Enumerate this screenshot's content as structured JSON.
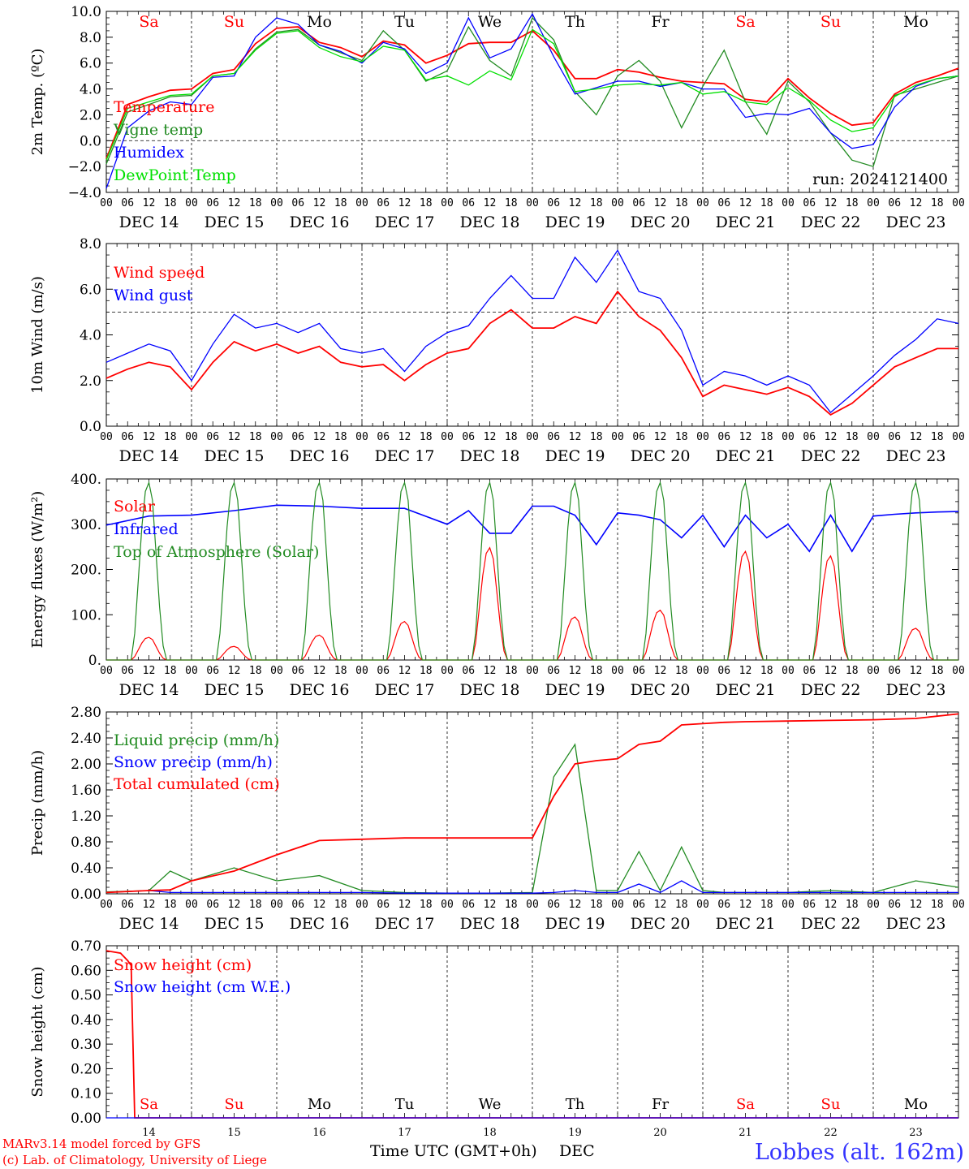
{
  "run_label": "run: 2024121400",
  "footer": {
    "model": "MARv3.14 model forced by GFS",
    "credit": "(c) Lab. of Climatology, University of Liege",
    "station": "Lobbes (alt. 162m)",
    "xlabel": "Time UTC (GMT+0h)",
    "month": "DEC"
  },
  "colors": {
    "red": "#ff0000",
    "green": "#228b22",
    "blue": "#0000ff",
    "lime": "#00e000",
    "weekend": "#ff0000",
    "weekday": "#000000"
  },
  "days": [
    {
      "wd": "Sa",
      "date": "14",
      "weekend": true
    },
    {
      "wd": "Su",
      "date": "15",
      "weekend": true
    },
    {
      "wd": "Mo",
      "date": "16",
      "weekend": false
    },
    {
      "wd": "Tu",
      "date": "17",
      "weekend": false
    },
    {
      "wd": "We",
      "date": "18",
      "weekend": false
    },
    {
      "wd": "Th",
      "date": "19",
      "weekend": false
    },
    {
      "wd": "Fr",
      "date": "20",
      "weekend": false
    },
    {
      "wd": "Sa",
      "date": "21",
      "weekend": true
    },
    {
      "wd": "Su",
      "date": "22",
      "weekend": true
    },
    {
      "wd": "Mo",
      "date": "23",
      "weekend": false
    }
  ],
  "hour_labels": [
    "00",
    "06",
    "12",
    "18"
  ],
  "date_labels": [
    "DEC 14",
    "DEC 15",
    "DEC 16",
    "DEC 17",
    "DEC 18",
    "DEC 19",
    "DEC 20",
    "DEC 21",
    "DEC 22",
    "DEC 23"
  ],
  "chart_data": [
    {
      "id": "temp",
      "type": "line",
      "ylabel": "2m Temp. (ºC)",
      "ylim": [
        -4,
        10
      ],
      "yticks": [
        "−4.0",
        "−2.0",
        "0.0",
        "2.0",
        "4.0",
        "6.0",
        "8.0",
        "10.0"
      ],
      "refline": 0,
      "show_weekdays": true,
      "x_hours": [
        0,
        6,
        12,
        18,
        24,
        30,
        36,
        42,
        48,
        54,
        60,
        66,
        72,
        78,
        84,
        90,
        96,
        102,
        108,
        114,
        120,
        126,
        132,
        138,
        144,
        150,
        156,
        162,
        168,
        174,
        180,
        186,
        192,
        198,
        204,
        210,
        216,
        222,
        228,
        234,
        240
      ],
      "series": [
        {
          "name": "Temperature",
          "color": "red",
          "values": [
            -1.4,
            2.8,
            3.4,
            3.9,
            4.0,
            5.2,
            5.5,
            7.5,
            8.7,
            8.8,
            7.6,
            7.2,
            6.5,
            7.7,
            7.4,
            6.0,
            6.6,
            7.5,
            7.6,
            7.6,
            8.5,
            7.0,
            4.8,
            4.8,
            5.5,
            5.3,
            4.9,
            4.6,
            4.5,
            4.4,
            3.2,
            3.0,
            4.8,
            3.3,
            2.1,
            1.2,
            1.4,
            3.6,
            4.5,
            5.0,
            5.6
          ]
        },
        {
          "name": "Vigne temp",
          "color": "green",
          "values": [
            -1.8,
            2.2,
            2.8,
            3.4,
            3.5,
            5.0,
            5.2,
            7.1,
            8.4,
            8.6,
            7.4,
            6.8,
            6.2,
            8.5,
            7.0,
            4.6,
            5.4,
            8.8,
            6.2,
            5.0,
            9.5,
            7.8,
            3.8,
            2.0,
            5.0,
            6.2,
            4.6,
            1.0,
            4.2,
            7.0,
            3.0,
            0.5,
            4.6,
            3.0,
            0.6,
            -1.5,
            -2.0,
            3.5,
            4.0,
            4.5,
            5.0
          ]
        },
        {
          "name": "Humidex",
          "color": "blue",
          "values": [
            -3.7,
            1.0,
            2.3,
            3.0,
            2.8,
            4.9,
            5.0,
            8.0,
            9.5,
            9.0,
            7.4,
            6.9,
            6.0,
            7.6,
            7.1,
            5.2,
            6.0,
            9.5,
            6.4,
            7.1,
            9.8,
            6.5,
            3.6,
            4.1,
            4.6,
            4.6,
            4.2,
            4.5,
            4.0,
            4.0,
            1.8,
            2.1,
            2.0,
            2.5,
            0.6,
            -0.6,
            -0.3,
            2.6,
            4.2,
            4.8,
            5.0
          ]
        },
        {
          "name": "DewPoint Temp",
          "color": "lime",
          "values": [
            -1.5,
            2.5,
            3.0,
            3.5,
            3.6,
            5.0,
            5.2,
            7.0,
            8.3,
            8.5,
            7.2,
            6.5,
            6.1,
            7.3,
            7.0,
            4.7,
            5.0,
            4.3,
            5.4,
            4.7,
            8.6,
            7.5,
            3.8,
            4.0,
            4.3,
            4.4,
            4.3,
            4.5,
            3.6,
            3.8,
            3.0,
            2.8,
            4.1,
            3.1,
            1.6,
            0.7,
            1.0,
            3.4,
            4.3,
            4.8,
            5.0
          ]
        }
      ]
    },
    {
      "id": "wind",
      "type": "line",
      "ylabel": "10m Wind (m/s)",
      "ylim": [
        0,
        8
      ],
      "yticks": [
        "0.0",
        "2.0",
        "4.0",
        "6.0",
        "8.0"
      ],
      "refline": 5,
      "show_weekdays": false,
      "x_hours": [
        0,
        6,
        12,
        18,
        24,
        30,
        36,
        42,
        48,
        54,
        60,
        66,
        72,
        78,
        84,
        90,
        96,
        102,
        108,
        114,
        120,
        126,
        132,
        138,
        144,
        150,
        156,
        162,
        168,
        174,
        180,
        186,
        192,
        198,
        204,
        210,
        216,
        222,
        228,
        234,
        240
      ],
      "series": [
        {
          "name": "Wind speed",
          "color": "red",
          "values": [
            2.1,
            2.5,
            2.8,
            2.6,
            1.6,
            2.8,
            3.7,
            3.3,
            3.6,
            3.2,
            3.5,
            2.8,
            2.6,
            2.7,
            2.0,
            2.7,
            3.2,
            3.4,
            4.5,
            5.1,
            4.3,
            4.3,
            4.8,
            4.5,
            5.9,
            4.8,
            4.2,
            3.0,
            1.3,
            1.8,
            1.6,
            1.4,
            1.7,
            1.3,
            0.5,
            1.0,
            1.8,
            2.6,
            3.0,
            3.4,
            3.4
          ]
        },
        {
          "name": "Wind gust",
          "color": "blue",
          "values": [
            2.8,
            3.2,
            3.6,
            3.3,
            2.0,
            3.6,
            4.9,
            4.3,
            4.5,
            4.1,
            4.5,
            3.4,
            3.2,
            3.4,
            2.4,
            3.5,
            4.1,
            4.4,
            5.6,
            6.6,
            5.6,
            5.6,
            7.4,
            6.3,
            7.7,
            5.9,
            5.6,
            4.2,
            1.8,
            2.4,
            2.2,
            1.8,
            2.2,
            1.8,
            0.6,
            1.4,
            2.2,
            3.1,
            3.8,
            4.7,
            4.5
          ]
        }
      ]
    },
    {
      "id": "energy",
      "type": "line",
      "ylabel": "Energy fluxes (W/m²)",
      "ylim": [
        0,
        400
      ],
      "yticks": [
        "0.",
        "100.",
        "200.",
        "300.",
        "400."
      ],
      "show_weekdays": false,
      "series": [
        {
          "name": "Solar",
          "color": "red",
          "kind": "diurnal",
          "peaks": [
            50,
            30,
            55,
            85,
            248,
            95,
            110,
            240,
            230,
            70
          ]
        },
        {
          "name": "Infrared",
          "color": "blue",
          "x_hours": [
            0,
            12,
            24,
            36,
            48,
            60,
            72,
            84,
            96,
            102,
            108,
            114,
            120,
            126,
            132,
            138,
            144,
            150,
            156,
            162,
            168,
            174,
            180,
            186,
            192,
            198,
            204,
            210,
            216,
            222,
            228,
            234,
            240
          ],
          "values": [
            298,
            318,
            320,
            330,
            342,
            340,
            335,
            335,
            300,
            330,
            280,
            280,
            340,
            340,
            320,
            255,
            325,
            320,
            310,
            270,
            320,
            250,
            320,
            270,
            300,
            240,
            320,
            240,
            318,
            322,
            325,
            327,
            328
          ]
        },
        {
          "name": "Top of Atmosphere (Solar)",
          "color": "green",
          "kind": "diurnal",
          "peaks": [
            392,
            392,
            392,
            392,
            392,
            392,
            392,
            392,
            392,
            392
          ]
        }
      ]
    },
    {
      "id": "precip",
      "type": "line",
      "ylabel": "Precip (mm/h)",
      "ylim": [
        0,
        2.8
      ],
      "yticks": [
        "0.00",
        "0.40",
        "0.80",
        "1.20",
        "1.60",
        "2.00",
        "2.40",
        "2.80"
      ],
      "show_weekdays": false,
      "x_hours": [
        0,
        12,
        18,
        24,
        36,
        48,
        60,
        72,
        84,
        96,
        108,
        120,
        126,
        132,
        138,
        144,
        150,
        156,
        162,
        168,
        174,
        180,
        192,
        204,
        216,
        228,
        240
      ],
      "series": [
        {
          "name": "Liquid precip (mm/h)",
          "color": "green",
          "values": [
            0.03,
            0.05,
            0.35,
            0.2,
            0.4,
            0.2,
            0.28,
            0.05,
            0.02,
            0.01,
            0.01,
            0.02,
            1.8,
            2.3,
            0.05,
            0.05,
            0.65,
            0.05,
            0.72,
            0.05,
            0.02,
            0.02,
            0.02,
            0.05,
            0.02,
            0.2,
            0.1
          ]
        },
        {
          "name": "Snow precip (mm/h)",
          "color": "blue",
          "values": [
            0.02,
            0.05,
            0.02,
            0.02,
            0.02,
            0.02,
            0.02,
            0.02,
            0.01,
            0.01,
            0.01,
            0.01,
            0.02,
            0.05,
            0.02,
            0.02,
            0.15,
            0.02,
            0.2,
            0.02,
            0.02,
            0.02,
            0.02,
            0.02,
            0.02,
            0.02,
            0.02
          ]
        },
        {
          "name": "Total cumulated (cm)",
          "color": "red",
          "values": [
            0.02,
            0.05,
            0.06,
            0.2,
            0.35,
            0.6,
            0.82,
            0.84,
            0.86,
            0.86,
            0.86,
            0.86,
            1.5,
            2.0,
            2.05,
            2.08,
            2.3,
            2.35,
            2.6,
            2.62,
            2.64,
            2.65,
            2.66,
            2.67,
            2.68,
            2.7,
            2.77
          ]
        }
      ]
    },
    {
      "id": "snow",
      "type": "line",
      "ylabel": "Snow height (cm)",
      "ylim": [
        0,
        0.7
      ],
      "yticks": [
        "0.00",
        "0.10",
        "0.20",
        "0.30",
        "0.40",
        "0.50",
        "0.60",
        "0.70"
      ],
      "show_weekdays_bottom": true,
      "x_hours": [
        0,
        4,
        6,
        7,
        8,
        240
      ],
      "series": [
        {
          "name": "Snow height (cm)",
          "color": "red",
          "values": [
            0.68,
            0.67,
            0.64,
            0.62,
            0.0,
            0.0
          ]
        },
        {
          "name": "Snow height (cm W.E.)",
          "color": "blue",
          "values": [
            0.0,
            0.0,
            0.0,
            0.0,
            0.0,
            0.0
          ]
        }
      ]
    }
  ]
}
